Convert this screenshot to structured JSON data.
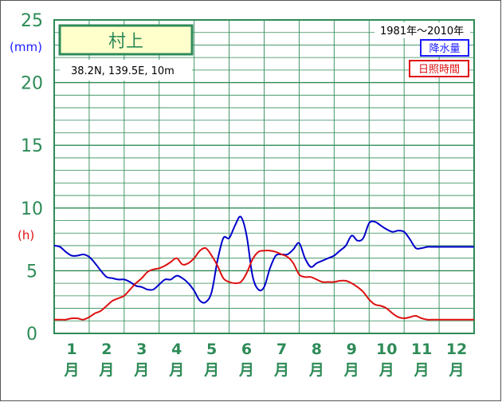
{
  "chart_data": {
    "type": "line",
    "title": "村上",
    "coordinates": "38.2N,  139.5E,  10m",
    "period": "1981年〜2010年",
    "y_unit_precip": "(mm)",
    "y_unit_sun": "(h)",
    "ylim": [
      0,
      25
    ],
    "y_ticks_left": [
      "25",
      "20",
      "15",
      "10",
      "5",
      "0"
    ],
    "y_ticks_values": [
      25,
      20,
      15,
      10,
      5,
      0
    ],
    "x_range": [
      0,
      36
    ],
    "months": [
      {
        "num": "1",
        "unit": "月"
      },
      {
        "num": "2",
        "unit": "月"
      },
      {
        "num": "3",
        "unit": "月"
      },
      {
        "num": "4",
        "unit": "月"
      },
      {
        "num": "5",
        "unit": "月"
      },
      {
        "num": "6",
        "unit": "月"
      },
      {
        "num": "7",
        "unit": "月"
      },
      {
        "num": "8",
        "unit": "月"
      },
      {
        "num": "9",
        "unit": "月"
      },
      {
        "num": "10",
        "unit": "月"
      },
      {
        "num": "11",
        "unit": "月"
      },
      {
        "num": "12",
        "unit": "月"
      }
    ],
    "grid": true,
    "legend_position": "top-right",
    "series": [
      {
        "name": "降水量",
        "color": "#0000cc",
        "x": [
          0,
          0.5,
          1,
          1.5,
          2,
          2.5,
          3,
          3.5,
          4,
          4.5,
          5,
          5.5,
          6,
          6.5,
          7,
          7.5,
          8,
          8.5,
          9,
          9.5,
          10,
          10.5,
          11,
          11.5,
          12,
          12.5,
          13,
          13.5,
          14,
          14.5,
          15,
          15.5,
          16,
          16.5,
          17,
          17.5,
          18,
          18.5,
          19,
          19.5,
          20,
          20.5,
          21,
          21.5,
          22,
          22.5,
          23,
          23.5,
          24,
          24.5,
          25,
          25.5,
          26,
          26.5,
          27,
          27.5,
          28,
          28.5,
          29,
          29.5,
          30,
          30.5,
          31,
          31.5,
          32,
          32.5,
          33,
          33.5,
          34,
          34.5,
          35,
          35.5,
          36
        ],
        "values": [
          7.0,
          6.9,
          6.5,
          6.2,
          6.2,
          6.3,
          6.1,
          5.6,
          5.0,
          4.5,
          4.4,
          4.3,
          4.3,
          4.1,
          3.8,
          3.7,
          3.5,
          3.5,
          3.9,
          4.3,
          4.3,
          4.6,
          4.4,
          4.0,
          3.4,
          2.6,
          2.5,
          3.3,
          5.8,
          7.6,
          7.6,
          8.6,
          9.3,
          7.8,
          4.6,
          3.5,
          3.7,
          5.2,
          6.2,
          6.3,
          6.3,
          6.7,
          7.2,
          6.0,
          5.3,
          5.6,
          5.8,
          6.0,
          6.2,
          6.6,
          7.0,
          7.8,
          7.4,
          7.6,
          8.8,
          8.9,
          8.6,
          8.3,
          8.1,
          8.2,
          8.1,
          7.5,
          6.8,
          6.8,
          6.9,
          6.9,
          6.9,
          6.9,
          6.9,
          6.9,
          6.9,
          6.9,
          6.9
        ]
      },
      {
        "name": "日照時間",
        "color": "#dd1111",
        "x": [
          0,
          0.5,
          1,
          1.5,
          2,
          2.5,
          3,
          3.5,
          4,
          4.5,
          5,
          5.5,
          6,
          6.5,
          7,
          7.5,
          8,
          8.5,
          9,
          9.5,
          10,
          10.5,
          11,
          11.5,
          12,
          12.5,
          13,
          13.5,
          14,
          14.5,
          15,
          15.5,
          16,
          16.5,
          17,
          17.5,
          18,
          18.5,
          19,
          19.5,
          20,
          20.5,
          21,
          21.5,
          22,
          22.5,
          23,
          23.5,
          24,
          24.5,
          25,
          25.5,
          26,
          26.5,
          27,
          27.5,
          28,
          28.5,
          29,
          29.5,
          30,
          30.5,
          31,
          31.5,
          32,
          32.5,
          33,
          33.5,
          34,
          34.5,
          35,
          35.5,
          36
        ],
        "values": [
          1.1,
          1.1,
          1.1,
          1.2,
          1.2,
          1.1,
          1.3,
          1.6,
          1.8,
          2.2,
          2.6,
          2.8,
          3.0,
          3.5,
          4.0,
          4.4,
          4.9,
          5.1,
          5.2,
          5.4,
          5.7,
          6.0,
          5.5,
          5.6,
          6.0,
          6.6,
          6.8,
          6.2,
          5.4,
          4.4,
          4.1,
          4.0,
          4.1,
          4.8,
          5.9,
          6.5,
          6.6,
          6.6,
          6.5,
          6.3,
          6.1,
          5.6,
          4.7,
          4.5,
          4.5,
          4.3,
          4.1,
          4.1,
          4.1,
          4.2,
          4.2,
          4.0,
          3.7,
          3.3,
          2.7,
          2.3,
          2.2,
          2.0,
          1.6,
          1.3,
          1.2,
          1.3,
          1.4,
          1.2,
          1.1,
          1.1,
          1.1,
          1.1,
          1.1,
          1.1,
          1.1,
          1.1,
          1.1
        ]
      }
    ]
  },
  "colors": {
    "grid": "#2e8b57",
    "frame": "#2e8b57",
    "title_bg": "#ffffcc"
  }
}
